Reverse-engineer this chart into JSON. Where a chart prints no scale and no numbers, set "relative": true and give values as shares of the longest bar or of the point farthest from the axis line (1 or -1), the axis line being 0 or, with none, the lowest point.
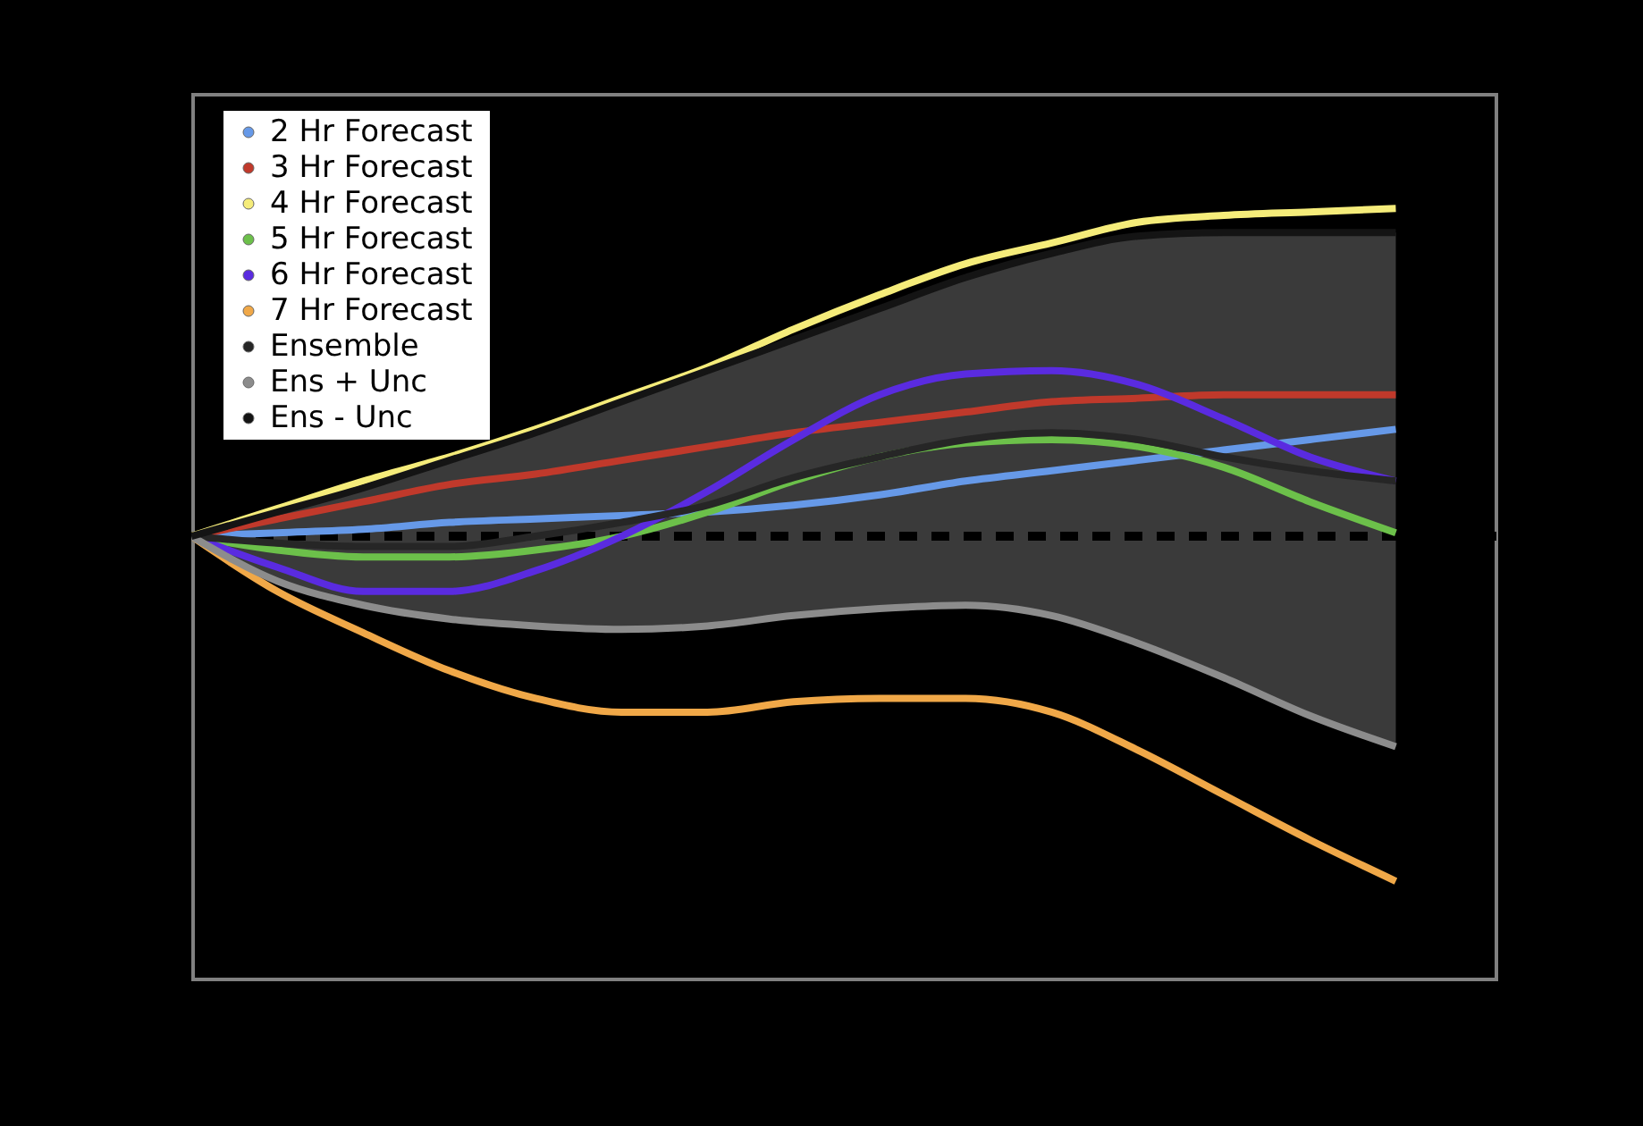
{
  "chart_data": {
    "type": "line",
    "relative": true,
    "categories": [
      null,
      null,
      null,
      null,
      null,
      null,
      null,
      null,
      null,
      null,
      null,
      null,
      null,
      null,
      null
    ],
    "legend": "top left",
    "line_style": "solid",
    "ref_lines": [
      {
        "axis": "y",
        "value": 0,
        "color": "#000000",
        "line_style": "dashed"
      }
    ],
    "series": [
      {
        "name": "2 Hr Forecast",
        "color": "#6699e8",
        "values": [
          0,
          0.01,
          0.02,
          0.04,
          0.05,
          0.06,
          0.07,
          0.09,
          0.12,
          0.16,
          0.19,
          0.22,
          0.25,
          0.28,
          0.31
        ]
      },
      {
        "name": "3 Hr Forecast",
        "color": "#c0392b",
        "values": [
          0,
          0.05,
          0.1,
          0.15,
          0.18,
          0.22,
          0.26,
          0.3,
          0.33,
          0.36,
          0.39,
          0.4,
          0.41,
          0.41,
          0.41
        ]
      },
      {
        "name": "4 Hr Forecast",
        "color": "#f5ec7a",
        "values": [
          0,
          0.08,
          0.16,
          0.23,
          0.31,
          0.4,
          0.49,
          0.6,
          0.7,
          0.79,
          0.85,
          0.91,
          0.93,
          0.94,
          0.95
        ]
      },
      {
        "name": "5 Hr Forecast",
        "color": "#6cc04a",
        "values": [
          0,
          -0.04,
          -0.06,
          -0.06,
          -0.04,
          0,
          0.07,
          0.16,
          0.23,
          0.27,
          0.28,
          0.26,
          0.2,
          0.1,
          0.01
        ]
      },
      {
        "name": "6 Hr Forecast",
        "color": "#5a2be0",
        "values": [
          0,
          -0.09,
          -0.16,
          -0.16,
          -0.1,
          0,
          0.13,
          0.28,
          0.41,
          0.47,
          0.48,
          0.44,
          0.34,
          0.23,
          0.16
        ]
      },
      {
        "name": "7 Hr Forecast",
        "color": "#f0a848",
        "values": [
          0,
          -0.16,
          -0.28,
          -0.39,
          -0.47,
          -0.51,
          -0.51,
          -0.48,
          -0.47,
          -0.47,
          -0.51,
          -0.62,
          -0.75,
          -0.88,
          -1
        ]
      },
      {
        "name": "Ensemble",
        "color": "#262626",
        "values": [
          0,
          -0.02,
          -0.03,
          -0.03,
          0,
          0.04,
          0.09,
          0.17,
          0.23,
          0.28,
          0.3,
          0.28,
          0.23,
          0.19,
          0.16
        ],
        "lower": [
          0,
          -0.13,
          -0.2,
          -0.24,
          -0.26,
          -0.27,
          -0.26,
          -0.23,
          -0.21,
          -0.2,
          -0.23,
          -0.31,
          -0.41,
          -0.52,
          -0.61
        ],
        "upper": [
          0,
          0.07,
          0.14,
          0.22,
          0.3,
          0.39,
          0.48,
          0.57,
          0.66,
          0.75,
          0.82,
          0.87,
          0.88,
          0.88,
          0.88
        ]
      },
      {
        "name": "Ens + Unc",
        "color": "#8c8c8c",
        "values": [
          0,
          -0.13,
          -0.2,
          -0.24,
          -0.26,
          -0.27,
          -0.26,
          -0.23,
          -0.21,
          -0.2,
          -0.23,
          -0.31,
          -0.41,
          -0.52,
          -0.61
        ]
      },
      {
        "name": "Ens - Unc",
        "color": "#141414",
        "values": [
          0,
          0.07,
          0.14,
          0.22,
          0.3,
          0.39,
          0.48,
          0.57,
          0.66,
          0.75,
          0.82,
          0.87,
          0.88,
          0.88,
          0.88
        ]
      }
    ]
  }
}
